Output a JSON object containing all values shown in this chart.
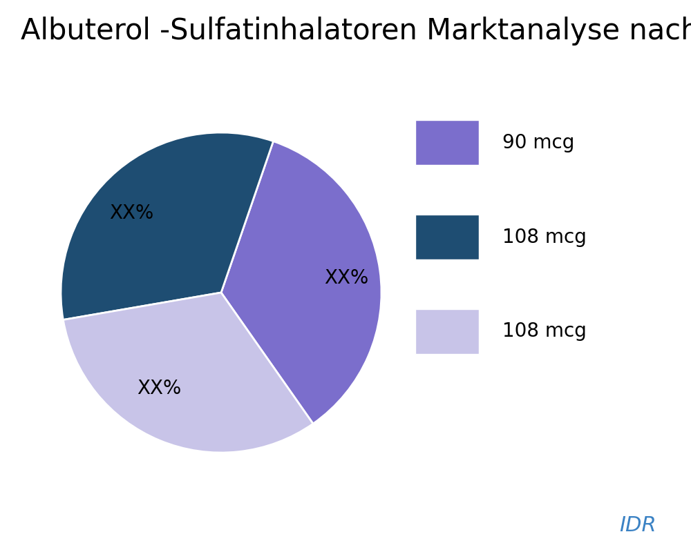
{
  "title": "Albuterol -Sulfatinhalatoren Marktanalyse nach Typ",
  "slices": [
    {
      "label": "90 mcg",
      "value": 35,
      "color": "#7B6ECC"
    },
    {
      "label": "108 mcg",
      "value": 33,
      "color": "#1E4D72"
    },
    {
      "label": "108 mcg",
      "value": 32,
      "color": "#C8C4E8"
    }
  ],
  "slice_labels": [
    "XX%",
    "XX%",
    "XX%"
  ],
  "title_fontsize": 30,
  "label_fontsize": 20,
  "legend_fontsize": 20,
  "idr_color": "#3B82C4",
  "background_color": "#FFFFFF",
  "startangle": 305
}
